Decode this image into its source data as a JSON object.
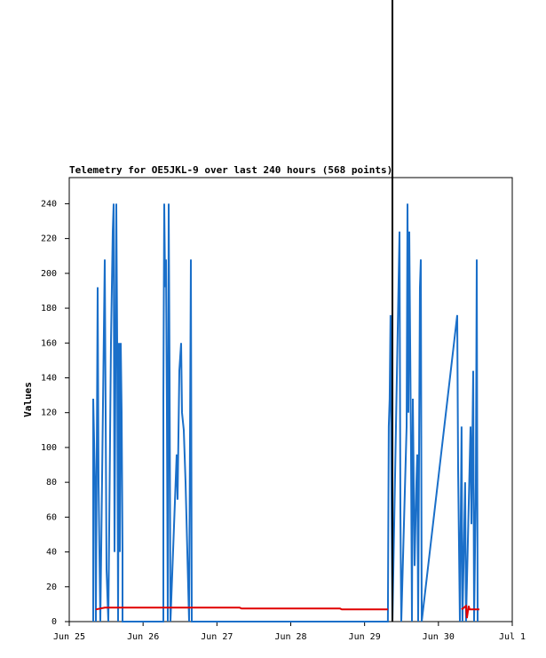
{
  "chart_data": {
    "type": "line",
    "title": "Telemetry for OE5JKL-9 over last 240 hours (568 points)",
    "y_label": "Values",
    "xlim": [
      0,
      6
    ],
    "xticks": [
      {
        "value": 0,
        "label": "Jun 25"
      },
      {
        "value": 1,
        "label": "Jun 26"
      },
      {
        "value": 2,
        "label": "Jun 27"
      },
      {
        "value": 3,
        "label": "Jun 28"
      },
      {
        "value": 4,
        "label": "Jun 29"
      },
      {
        "value": 5,
        "label": "Jun 30"
      },
      {
        "value": 6,
        "label": "Jul 1"
      }
    ],
    "ylim": [
      0,
      255
    ],
    "yticks": [
      0,
      20,
      40,
      60,
      80,
      100,
      120,
      140,
      160,
      180,
      200,
      220,
      240
    ],
    "cursor_x": 4.377,
    "cursor_color": "#000000",
    "series": [
      {
        "color": "#1a6fc9",
        "x": [
          0.325,
          0.325,
          0.349,
          0.361,
          0.385,
          0.397,
          0.421,
          0.481,
          0.505,
          0.529,
          0.565,
          0.589,
          0.601,
          0.613,
          0.637,
          0.649,
          0.661,
          0.673,
          0.685,
          0.697,
          0.709,
          0.721,
          0.721,
          1.275,
          1.275,
          1.287,
          1.299,
          1.311,
          1.323,
          1.335,
          1.347,
          1.359,
          1.371,
          1.455,
          1.467,
          1.491,
          1.515,
          1.527,
          1.551,
          1.575,
          1.599,
          1.623,
          1.647,
          1.659,
          4.316,
          4.328,
          4.34,
          4.352,
          4.364,
          4.377,
          4.473,
          4.485,
          4.497,
          4.569,
          4.581,
          4.593,
          4.605,
          4.617,
          4.629,
          4.641,
          4.653,
          4.665,
          4.677,
          4.701,
          4.713,
          4.725,
          4.749,
          4.761,
          4.773,
          5.254,
          5.266,
          5.29,
          5.314,
          5.326,
          5.362,
          5.374,
          5.435,
          5.447,
          5.471,
          5.483,
          5.507,
          5.519,
          5.531
        ],
        "values": [
          0,
          128,
          80,
          0,
          192,
          80,
          0,
          208,
          30,
          0,
          160,
          224,
          240,
          40,
          240,
          160,
          0,
          160,
          40,
          160,
          120,
          40,
          0,
          0,
          128,
          240,
          192,
          208,
          120,
          0,
          240,
          144,
          0,
          96,
          70,
          144,
          160,
          120,
          110,
          80,
          40,
          0,
          208,
          0,
          0,
          112,
          128,
          176,
          80,
          0,
          224,
          64,
          0,
          112,
          240,
          120,
          224,
          160,
          96,
          0,
          128,
          80,
          32,
          80,
          96,
          0,
          192,
          208,
          0,
          176,
          88,
          0,
          112,
          0,
          80,
          0,
          112,
          56,
          144,
          0,
          80,
          208,
          0
        ]
      },
      {
        "color": "#e00000",
        "x": [
          0.361,
          0.481,
          0.565,
          2.309,
          2.333,
          3.667,
          3.691,
          4.316,
          4.5,
          5.314,
          5.374,
          5.386,
          5.41,
          5.422,
          5.555
        ],
        "values": [
          7,
          8,
          8,
          8,
          7.5,
          7.5,
          7,
          7,
          null,
          7,
          9,
          2,
          9,
          7,
          7
        ]
      }
    ]
  }
}
